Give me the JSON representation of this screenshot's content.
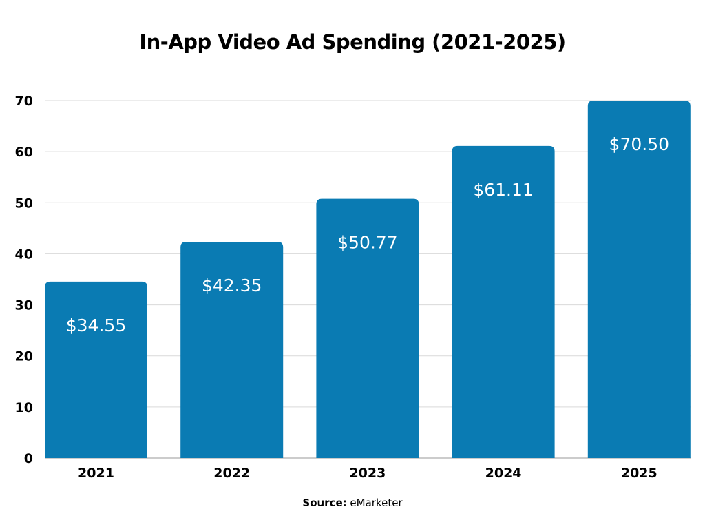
{
  "chart_data": {
    "type": "bar",
    "title": "In-App Video Ad Spending (2021-2025)",
    "categories": [
      "2021",
      "2022",
      "2023",
      "2024",
      "2025"
    ],
    "values": [
      34.55,
      42.35,
      50.77,
      61.11,
      70.5
    ],
    "data_labels": [
      "$34.55",
      "$42.35",
      "$50.77",
      "$61.11",
      "$70.50"
    ],
    "xlabel": "",
    "ylabel": "",
    "ylim": [
      0,
      70
    ],
    "yticks": [
      0,
      10,
      20,
      30,
      40,
      50,
      60,
      70
    ],
    "grid": true,
    "bar_color": "#0a7bb3",
    "grid_color": "#d9d9d9"
  },
  "source": {
    "label": "Source:",
    "value": "eMarketer"
  }
}
